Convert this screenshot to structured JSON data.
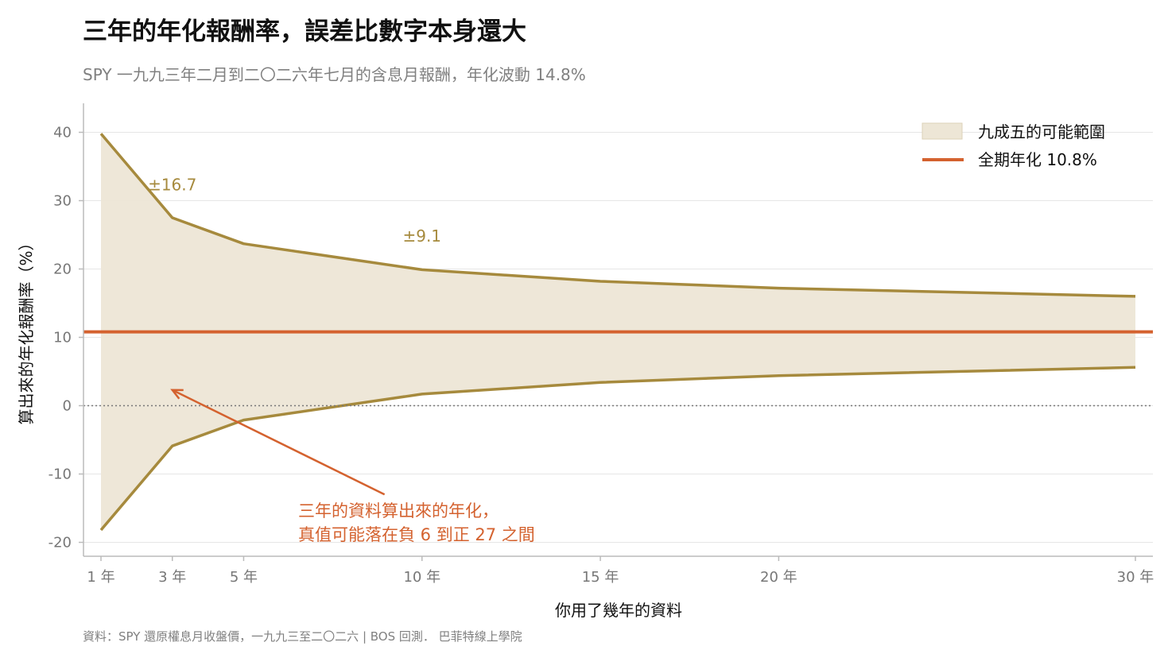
{
  "title": "三年的年化報酬率，誤差比數字本身還大",
  "subtitle": "SPY 一九九三年二月到二〇二六年七月的含息月報酬，年化波動 14.8%",
  "source": "資料：SPY 還原權息月收盤價，一九九三至二〇二六 | BOS 回測．  巴菲特線上學院",
  "colors": {
    "band_fill": "#ede6d6",
    "band_line": "#a68a3d",
    "mean_line": "#d4622f",
    "annotation": "#d4622f"
  },
  "chart_data": {
    "type": "area",
    "xlabel": "你用了幾年的資料",
    "ylabel": "算出來的年化報酬率（%）",
    "xlim": [
      1,
      30
    ],
    "ylim": [
      -20,
      40
    ],
    "x_ticks": [
      1,
      3,
      5,
      10,
      15,
      20,
      30
    ],
    "x_tick_labels": [
      "1 年",
      "3 年",
      "5 年",
      "10 年",
      "15 年",
      "20 年",
      "30 年"
    ],
    "y_ticks": [
      -20,
      -10,
      0,
      10,
      20,
      30,
      40
    ],
    "y_tick_labels": [
      "-20",
      "-10",
      "0",
      "10",
      "20",
      "30",
      "40"
    ],
    "grid": true,
    "legend_position": "top-right",
    "x": [
      1,
      3,
      5,
      10,
      15,
      20,
      30
    ],
    "upper": [
      39.8,
      27.5,
      23.7,
      19.9,
      18.2,
      17.2,
      16.0
    ],
    "lower": [
      -18.2,
      -5.9,
      -2.1,
      1.7,
      3.4,
      4.4,
      5.6
    ],
    "series": [
      {
        "name": "九成五的可能範圍",
        "kind": "band"
      },
      {
        "name": "全期年化 10.8%",
        "kind": "line",
        "value": 10.8
      }
    ],
    "zero_line": 0,
    "band_labels": [
      {
        "x": 3,
        "y": 31.5,
        "text": "±16.7"
      },
      {
        "x": 10,
        "y": 24.0,
        "text": "±9.1"
      }
    ],
    "annotation": {
      "lines": [
        "三年的資料算出來的年化，",
        "真值可能落在負 6 到正 27 之間"
      ],
      "target": {
        "x": 3,
        "y": 2.3
      },
      "tail": {
        "x": 8.95,
        "y": -13.0
      }
    }
  }
}
